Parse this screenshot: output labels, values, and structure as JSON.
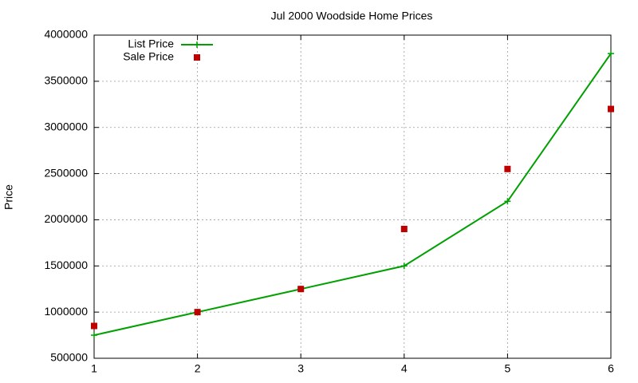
{
  "chart_data": {
    "type": "line",
    "title": "Jul 2000 Woodside Home Prices",
    "y_label": "Price",
    "x": [
      1,
      2,
      3,
      4,
      5,
      6
    ],
    "series": [
      {
        "name": "List Price",
        "color": "#00a000",
        "style": "linespoints",
        "values": [
          750000,
          1000000,
          1250000,
          1500000,
          2200000,
          3800000
        ]
      },
      {
        "name": "Sale Price",
        "color": "#c00000",
        "style": "points",
        "values": [
          850000,
          1000000,
          1250000,
          1900000,
          2550000,
          3200000
        ]
      }
    ],
    "xlim": [
      1,
      6
    ],
    "xticks": [
      1,
      2,
      3,
      4,
      5,
      6
    ],
    "ylim": [
      500000,
      4000000
    ],
    "yticks": [
      500000,
      1000000,
      1500000,
      2000000,
      2500000,
      3000000,
      3500000,
      4000000
    ],
    "grid": true,
    "legend": "top-left"
  }
}
